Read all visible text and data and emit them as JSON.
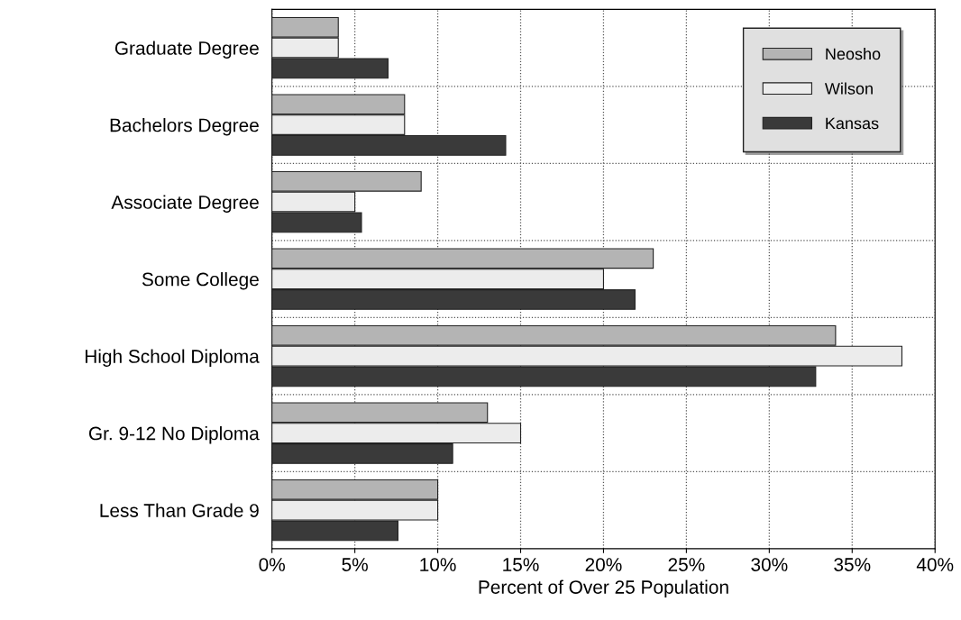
{
  "chart_data": {
    "type": "bar",
    "orientation": "horizontal",
    "xlabel": "Percent of Over 25 Population",
    "categories": [
      "Graduate Degree",
      "Bachelors Degree",
      "Associate Degree",
      "Some College",
      "High School Diploma",
      "Gr. 9-12 No Diploma",
      "Less Than Grade 9"
    ],
    "series": [
      {
        "name": "Neosho",
        "color": "#b4b4b4",
        "values": [
          4,
          8,
          9,
          23,
          34,
          13,
          10
        ]
      },
      {
        "name": "Wilson",
        "color": "#ececec",
        "values": [
          4,
          8,
          5,
          20,
          38,
          15,
          10
        ]
      },
      {
        "name": "Kansas",
        "color": "#3a3a3a",
        "values": [
          7,
          14.1,
          5.4,
          21.9,
          32.8,
          10.9,
          7.6
        ]
      }
    ],
    "xlim": [
      0,
      40
    ],
    "xticks": [
      {
        "value": 0,
        "label": "0%"
      },
      {
        "value": 5,
        "label": "5%"
      },
      {
        "value": 10,
        "label": "10%"
      },
      {
        "value": 15,
        "label": "15%"
      },
      {
        "value": 20,
        "label": "20%"
      },
      {
        "value": 25,
        "label": "25%"
      },
      {
        "value": 30,
        "label": "30%"
      },
      {
        "value": 35,
        "label": "35%"
      },
      {
        "value": 40,
        "label": "40%"
      }
    ],
    "grid": true,
    "legend": "top right"
  }
}
